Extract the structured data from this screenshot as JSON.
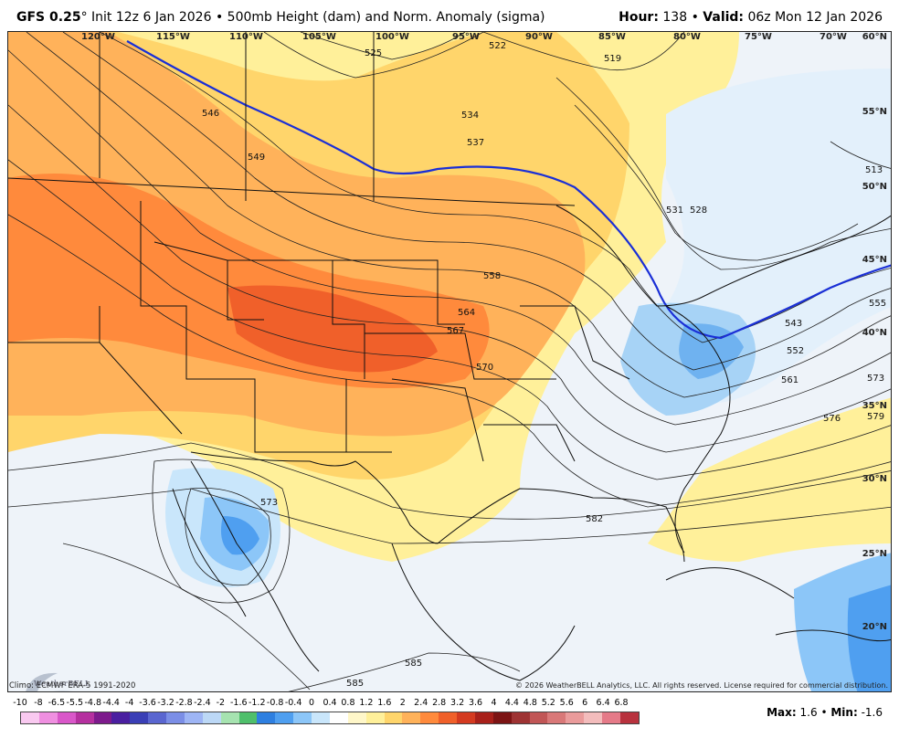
{
  "header": {
    "model": "GFS 0.25",
    "degree": "°",
    "init": "Init 12z 6 Jan 2026",
    "sep": "•",
    "product": "500mb Height (dam) and Norm. Anomaly (sigma)",
    "hour_label": "Hour:",
    "hour_value": "138",
    "valid_label": "Valid:",
    "valid_value": "06z Mon 12 Jan 2026"
  },
  "longitudes": [
    "120°W",
    "115°W",
    "110°W",
    "105°W",
    "100°W",
    "95°W",
    "90°W",
    "85°W",
    "80°W",
    "75°W",
    "70°W"
  ],
  "latitudes": [
    "60°N",
    "55°N",
    "50°N",
    "45°N",
    "40°N",
    "35°N",
    "30°N",
    "25°N",
    "20°N"
  ],
  "contour_labels": [
    "525",
    "522",
    "519",
    "546",
    "534",
    "537",
    "549",
    "531",
    "528",
    "513",
    "558",
    "564",
    "567",
    "570",
    "543",
    "555",
    "552",
    "561",
    "573",
    "576",
    "579",
    "573",
    "582",
    "585",
    "585"
  ],
  "footer": {
    "climo": "Climo: ECMWF ERA-5 1991-2020",
    "copyright": "© 2026 WeatherBELL Analytics, LLC. All rights reserved. License required for commercial distribution.",
    "max_label": "Max:",
    "max_value": "1.6",
    "min_label": "Min:",
    "min_value": "-1.6",
    "logo_text": "WeatherBELL"
  },
  "legend": {
    "labels": [
      "-10",
      "-8",
      "-6.5",
      "-5.5",
      "-4.8",
      "-4.4",
      "-4",
      "-3.6",
      "-3.2",
      "-2.8",
      "-2.4",
      "-2",
      "-1.6",
      "-1.2",
      "-0.8",
      "-0.4",
      "0",
      "0.4",
      "0.8",
      "1.2",
      "1.6",
      "2",
      "2.4",
      "2.8",
      "3.2",
      "3.6",
      "4",
      "4.4",
      "4.8",
      "5.2",
      "5.6",
      "6",
      "6.4",
      "6.8"
    ],
    "colors": [
      "#f9c9f0",
      "#ef8fe0",
      "#d957c9",
      "#b5309f",
      "#7d1a8c",
      "#4a1fa0",
      "#3a3fb6",
      "#5a66d0",
      "#7b8ee6",
      "#9eb5f5",
      "#bcd8f6",
      "#a6e3b0",
      "#4fbf6b",
      "#2e7fe0",
      "#4f9ff0",
      "#8cc6f8",
      "#c9e6fb",
      "#ffffff",
      "#fff7c9",
      "#fff09a",
      "#ffd56b",
      "#ffb25a",
      "#ff8a3c",
      "#f0602a",
      "#d43a20",
      "#a8201a",
      "#7c1414",
      "#9e3333",
      "#c15656",
      "#d97878",
      "#ea9b9b",
      "#f3bcbc",
      "#e57a88",
      "#b8323e"
    ]
  }
}
